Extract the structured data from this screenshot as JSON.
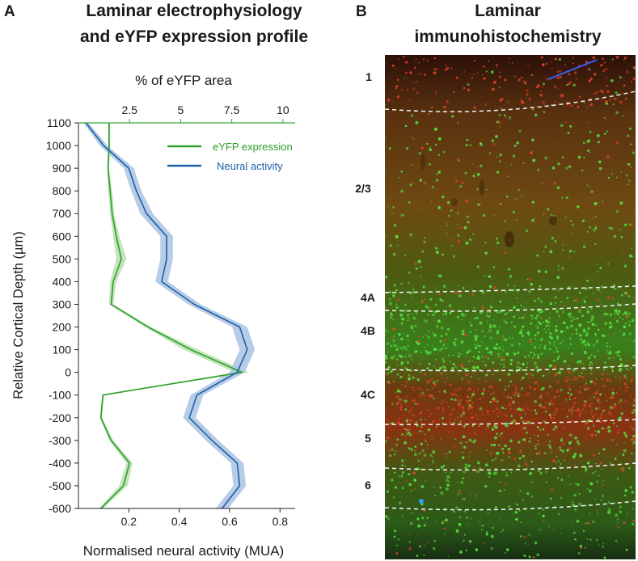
{
  "panels": {
    "a": {
      "letter": "A",
      "title_line1": "Laminar electrophysiology",
      "title_line2": "and eYFP expression profile"
    },
    "b": {
      "letter": "B",
      "title_line1": "Laminar",
      "title_line2": "immunohistochemistry"
    }
  },
  "chart_data": {
    "type": "line",
    "ylabel": "Relative Cortical Depth (µm)",
    "xlabel_bottom": "Normalised neural activity (MUA)",
    "xlabel_top": "% of eYFP area",
    "ylim": [
      -600,
      1100
    ],
    "yticks": [
      1100,
      1000,
      900,
      800,
      700,
      600,
      500,
      400,
      300,
      200,
      100,
      0,
      -100,
      -200,
      -300,
      -400,
      -500,
      -600
    ],
    "bottom_xlim": [
      0,
      0.86
    ],
    "bottom_xticks": [
      0.2,
      0.4,
      0.6,
      0.8
    ],
    "bottom_xtick_labels": [
      "0.2",
      "0.4",
      "0.6",
      "0.8"
    ],
    "top_xlim": [
      0,
      10.6
    ],
    "top_xticks": [
      2.5,
      5,
      7.5,
      10
    ],
    "top_xtick_labels": [
      "2.5",
      "5",
      "7.5",
      "10"
    ],
    "legend_position": "top-right",
    "series": [
      {
        "name": "eYFP expression",
        "axis": "top",
        "color": "#2ca02c",
        "band_color": "#b9dfae",
        "points": [
          [
            1.5,
            1100
          ],
          [
            1.5,
            1000
          ],
          [
            1.45,
            900
          ],
          [
            1.55,
            800
          ],
          [
            1.65,
            700
          ],
          [
            1.85,
            600
          ],
          [
            2.1,
            500
          ],
          [
            1.7,
            400
          ],
          [
            1.6,
            300
          ],
          [
            3.4,
            200
          ],
          [
            5.5,
            100
          ],
          [
            8.0,
            0
          ],
          [
            1.2,
            -100
          ],
          [
            1.1,
            -200
          ],
          [
            1.6,
            -300
          ],
          [
            2.5,
            -400
          ],
          [
            2.2,
            -500
          ],
          [
            1.1,
            -600
          ]
        ],
        "err": [
          0.05,
          0.05,
          0.05,
          0.1,
          0.1,
          0.15,
          0.25,
          0.15,
          0.1,
          0.15,
          0.35,
          0.35,
          0.05,
          0.05,
          0.1,
          0.15,
          0.2,
          0.1
        ]
      },
      {
        "name": "Neural activity",
        "axis": "bottom",
        "color": "#1f5fa6",
        "band_color": "#aac3e3",
        "points": [
          [
            0.03,
            1100
          ],
          [
            0.1,
            1000
          ],
          [
            0.2,
            900
          ],
          [
            0.23,
            800
          ],
          [
            0.27,
            700
          ],
          [
            0.35,
            600
          ],
          [
            0.35,
            500
          ],
          [
            0.33,
            400
          ],
          [
            0.46,
            300
          ],
          [
            0.64,
            200
          ],
          [
            0.67,
            100
          ],
          [
            0.63,
            0
          ],
          [
            0.47,
            -100
          ],
          [
            0.44,
            -200
          ],
          [
            0.53,
            -300
          ],
          [
            0.63,
            -400
          ],
          [
            0.64,
            -500
          ],
          [
            0.57,
            -600
          ]
        ],
        "err": [
          0.01,
          0.015,
          0.02,
          0.02,
          0.025,
          0.025,
          0.025,
          0.025,
          0.025,
          0.03,
          0.03,
          0.03,
          0.025,
          0.025,
          0.025,
          0.025,
          0.025,
          0.025
        ]
      }
    ]
  },
  "histology": {
    "layer_labels": [
      "1",
      "2/3",
      "4A",
      "4B",
      "4C",
      "5",
      "6"
    ],
    "tissue_colors": [
      "#2c1008",
      "#5a3210",
      "#6e4a12",
      "#4e5a12",
      "#38801c",
      "#6a3a10",
      "#8a3212",
      "#3e5a14",
      "#2c5a18",
      "#172e12"
    ],
    "speckle_colors": [
      "#58e642",
      "#e24126"
    ]
  }
}
